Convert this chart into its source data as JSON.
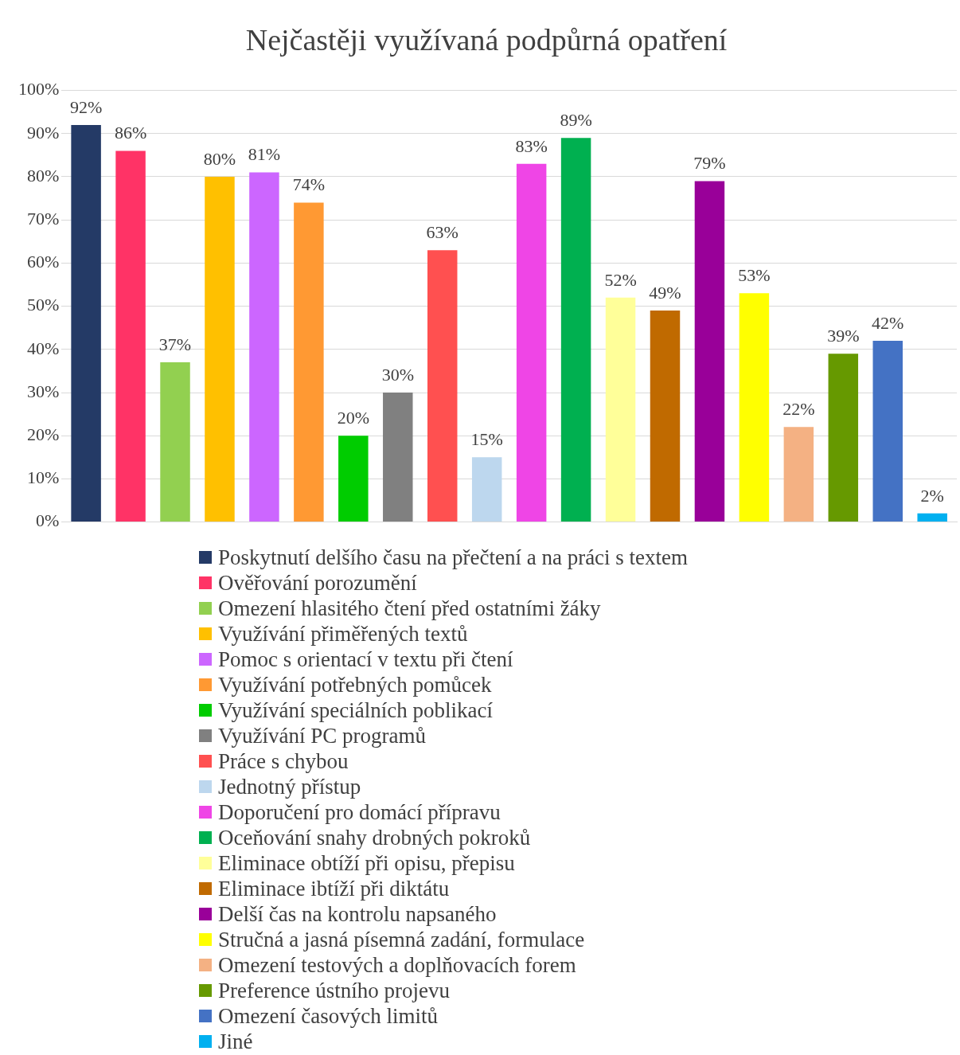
{
  "chart_data": {
    "type": "bar",
    "title": "Nejčastěji využívaná podpůrná opatření",
    "categories": [
      null
    ],
    "ylim": [
      0,
      100
    ],
    "yticks": [
      {
        "value": 0,
        "label": "0%"
      },
      {
        "value": 10,
        "label": "10%"
      },
      {
        "value": 20,
        "label": "20%"
      },
      {
        "value": 30,
        "label": "30%"
      },
      {
        "value": 40,
        "label": "40%"
      },
      {
        "value": 50,
        "label": "50%"
      },
      {
        "value": 60,
        "label": "60%"
      },
      {
        "value": 70,
        "label": "70%"
      },
      {
        "value": 80,
        "label": "80%"
      },
      {
        "value": 90,
        "label": "90%"
      },
      {
        "value": 100,
        "label": "100%"
      }
    ],
    "grid": "y",
    "legend": "bottom",
    "series": [
      {
        "name": "Poskytnutí delšího času na přečtení a na práci s textem",
        "color": "#243a66",
        "values": [
          92
        ],
        "value_labels": [
          "92%"
        ]
      },
      {
        "name": "Ověřování porozumění",
        "color": "#ff3366",
        "values": [
          86
        ],
        "value_labels": [
          "86%"
        ]
      },
      {
        "name": "Omezení hlasitého čtení před ostatními žáky",
        "color": "#92d050",
        "values": [
          37
        ],
        "value_labels": [
          "37%"
        ]
      },
      {
        "name": "Využívání přiměřených textů",
        "color": "#ffc000",
        "values": [
          80
        ],
        "value_labels": [
          "80%"
        ]
      },
      {
        "name": "Pomoc s orientací v textu při čtení",
        "color": "#cc66ff",
        "values": [
          81
        ],
        "value_labels": [
          "81%"
        ]
      },
      {
        "name": "Využívání potřebných pomůcek",
        "color": "#ff9933",
        "values": [
          74
        ],
        "value_labels": [
          "74%"
        ]
      },
      {
        "name": "Využívání speciálních poblikací",
        "color": "#00cc00",
        "values": [
          20
        ],
        "value_labels": [
          "20%"
        ]
      },
      {
        "name": "Využívání PC programů",
        "color": "#808080",
        "values": [
          30
        ],
        "value_labels": [
          "30%"
        ]
      },
      {
        "name": "Práce s chybou",
        "color": "#ff5050",
        "values": [
          63
        ],
        "value_labels": [
          "63%"
        ]
      },
      {
        "name": "Jednotný přístup",
        "color": "#bdd7ee",
        "values": [
          15
        ],
        "value_labels": [
          "15%"
        ]
      },
      {
        "name": "Doporučení pro domácí přípravu",
        "color": "#ef45e6",
        "values": [
          83
        ],
        "value_labels": [
          "83%"
        ]
      },
      {
        "name": "Oceňování snahy drobných pokroků",
        "color": "#00b050",
        "values": [
          89
        ],
        "value_labels": [
          "89%"
        ]
      },
      {
        "name": "Eliminace obtíží při opisu, přepisu",
        "color": "#ffff99",
        "values": [
          52
        ],
        "value_labels": [
          "52%"
        ]
      },
      {
        "name": "Eliminace ibtíží při diktátu",
        "color": "#c06a00",
        "values": [
          49
        ],
        "value_labels": [
          "49%"
        ]
      },
      {
        "name": "Delší čas na kontrolu napsaného",
        "color": "#990099",
        "values": [
          79
        ],
        "value_labels": [
          "79%"
        ]
      },
      {
        "name": "Stručná a jasná písemná zadání, formulace",
        "color": "#ffff00",
        "values": [
          53
        ],
        "value_labels": [
          "53%"
        ]
      },
      {
        "name": "Omezení testových a doplňovacích forem",
        "color": "#f4b183",
        "values": [
          22
        ],
        "value_labels": [
          "22%"
        ]
      },
      {
        "name": "Preference ústního projevu",
        "color": "#669900",
        "values": [
          39
        ],
        "value_labels": [
          "39%"
        ]
      },
      {
        "name": "Omezení časových limitů",
        "color": "#4472c4",
        "values": [
          42
        ],
        "value_labels": [
          "42%"
        ]
      },
      {
        "name": "Jiné",
        "color": "#00b0f0",
        "values": [
          2
        ],
        "value_labels": [
          "2%"
        ]
      }
    ]
  }
}
